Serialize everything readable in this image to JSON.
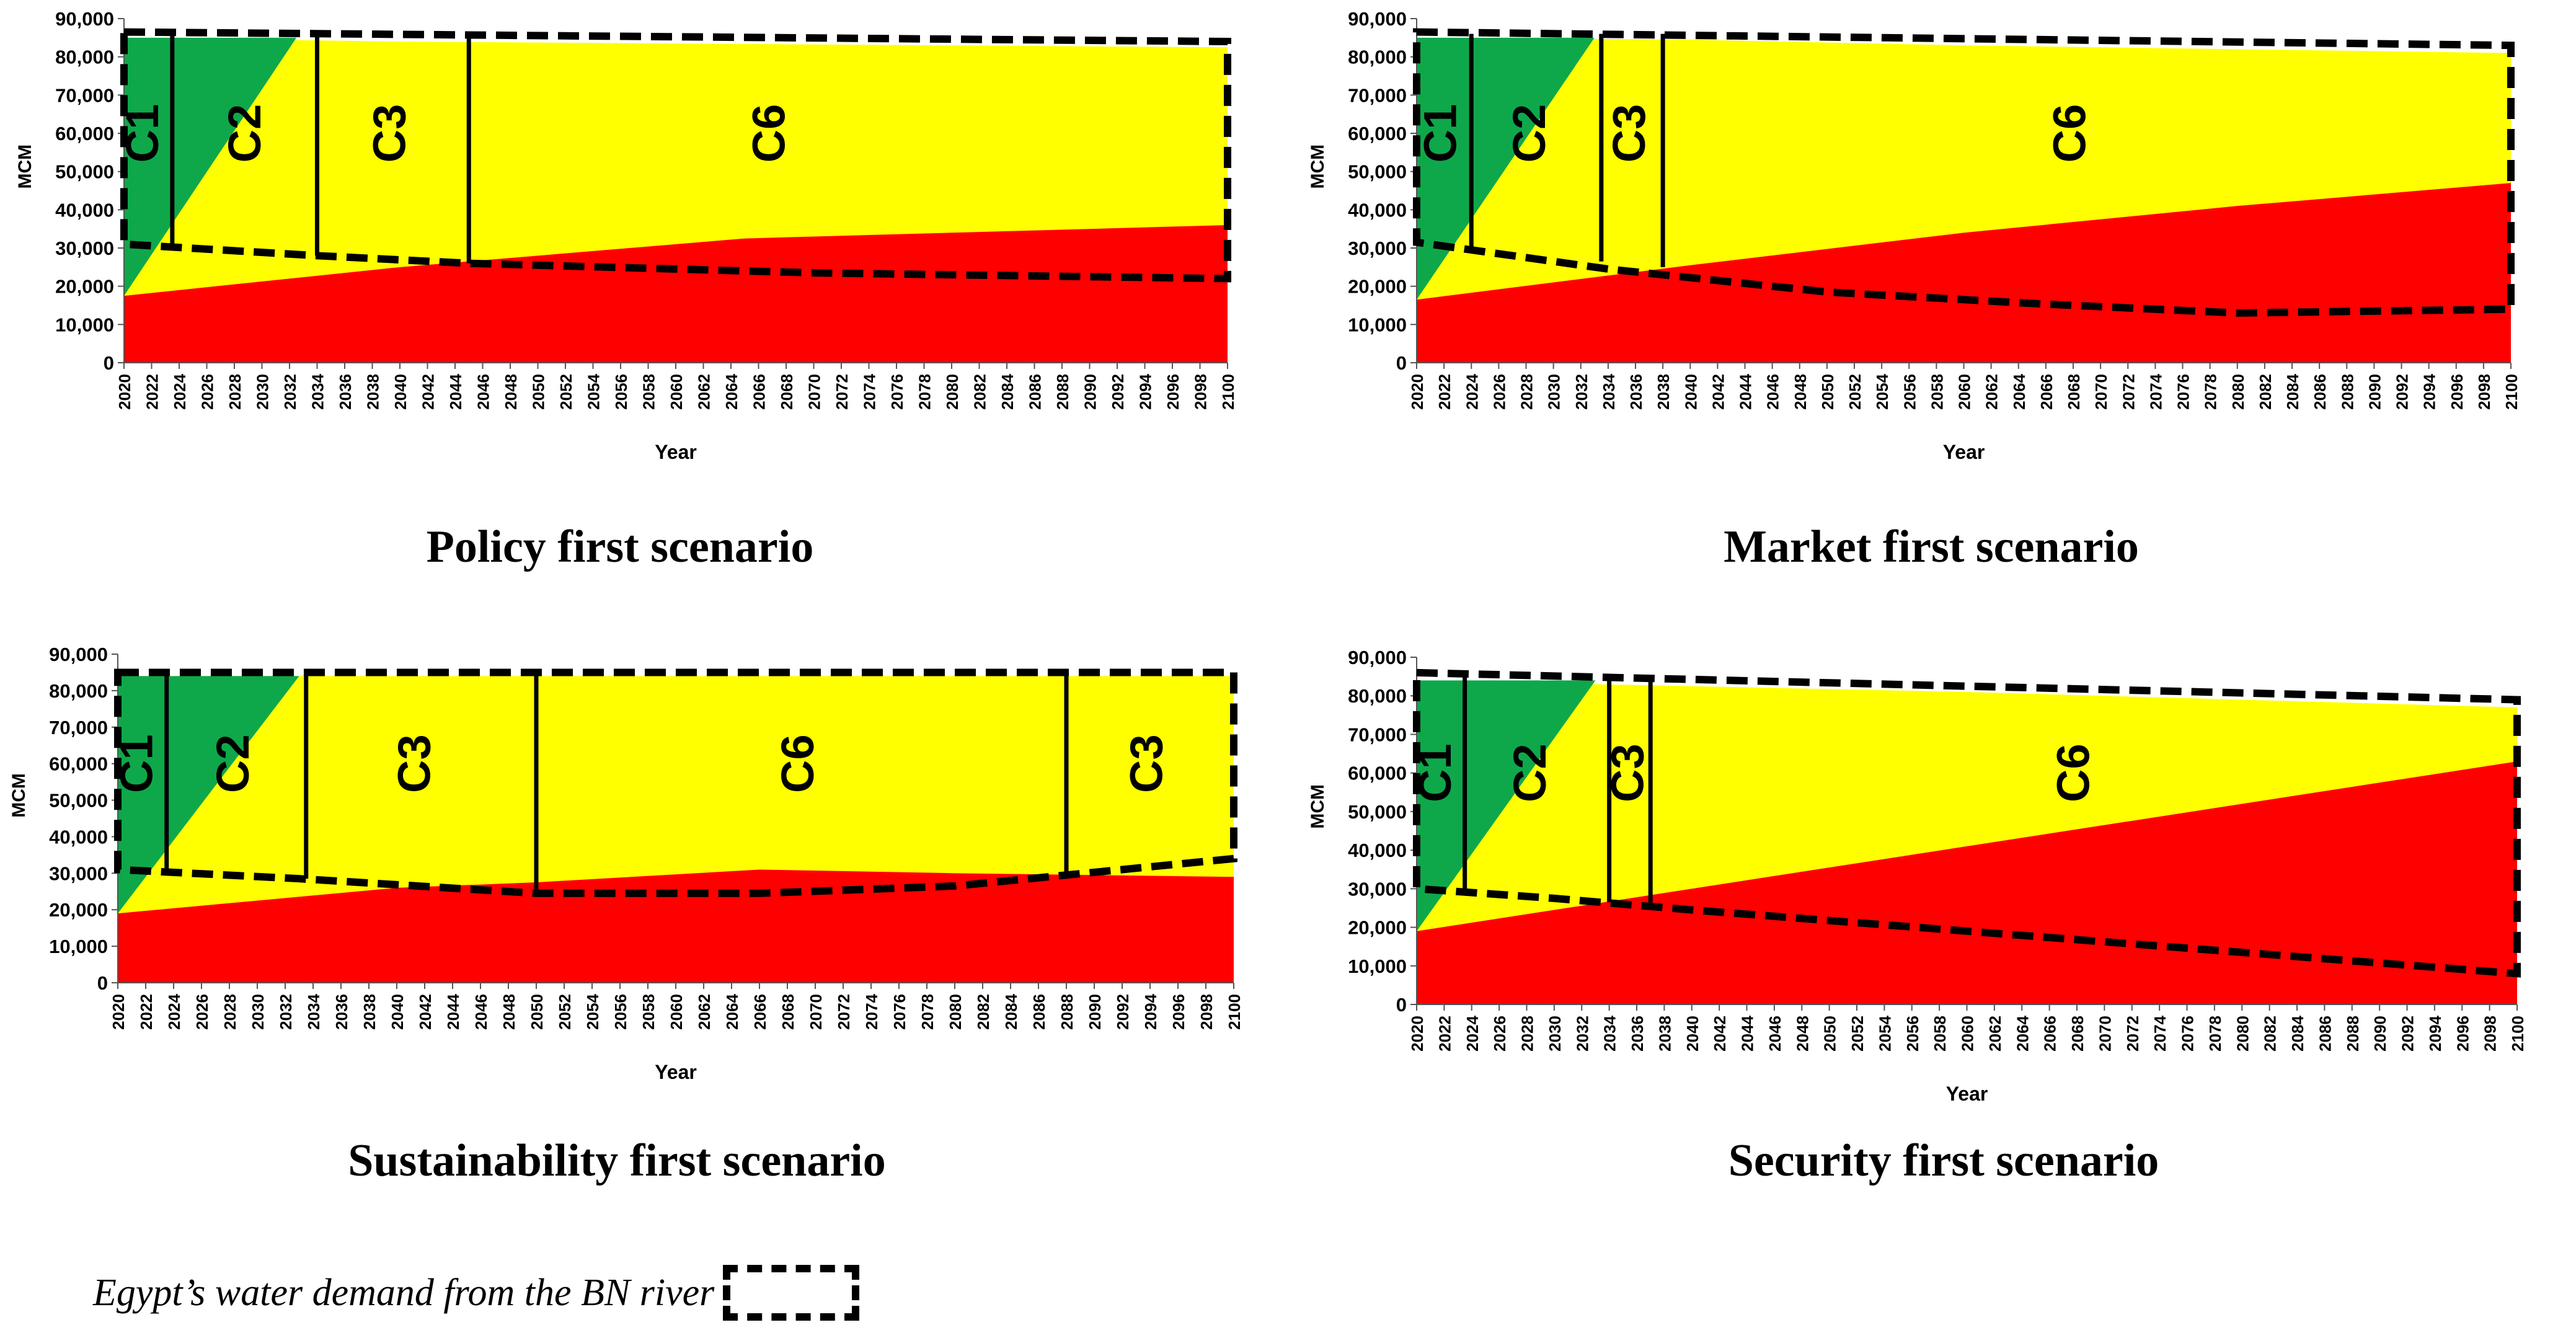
{
  "figure": {
    "legend_text": "Egypt’s water demand from the BN river",
    "panels": [
      {
        "title": "Policy first scenario",
        "chart_data": {
          "type": "area",
          "xlabel": "Year",
          "ylabel": "MCM",
          "x_range": [
            2020,
            2100
          ],
          "ylim": [
            0,
            90000
          ],
          "y_ticks": [
            0,
            10000,
            20000,
            30000,
            40000,
            50000,
            60000,
            70000,
            80000,
            90000
          ],
          "x_ticks": [
            2020,
            2022,
            2024,
            2026,
            2028,
            2030,
            2032,
            2034,
            2036,
            2038,
            2040,
            2042,
            2044,
            2046,
            2048,
            2050,
            2052,
            2054,
            2056,
            2058,
            2060,
            2062,
            2064,
            2066,
            2068,
            2070,
            2072,
            2074,
            2076,
            2078,
            2080,
            2082,
            2084,
            2086,
            2088,
            2090,
            2092,
            2094,
            2096,
            2098,
            2100
          ],
          "colors": {
            "red": "#ff0000",
            "yellow": "#ffff00",
            "green": "#0ea84a"
          },
          "series": [
            {
              "name": "",
              "color": "#ff0000",
              "points": [
                [
                  2020,
                  17500
                ],
                [
                  2040,
                  25000
                ],
                [
                  2065,
                  32500
                ],
                [
                  2100,
                  36000
                ]
              ]
            },
            {
              "name": "",
              "color": "#ffff00",
              "points": [
                [
                  2020,
                  85000
                ],
                [
                  2040,
                  84000
                ],
                [
                  2060,
                  83500
                ],
                [
                  2080,
                  83000
                ],
                [
                  2100,
                  82500
                ]
              ]
            }
          ],
          "green_region": [
            [
              2020,
              17500
            ],
            [
              2020,
              85000
            ],
            [
              2032.5,
              85000
            ]
          ],
          "regions": [
            {
              "label": "C1",
              "x_start": 2020,
              "x_end": 2023.5,
              "label_x": 2021.6
            },
            {
              "label": "C2",
              "x_start": 2023.5,
              "x_end": 2034,
              "label_x": 2029
            },
            {
              "label": "C3",
              "x_start": 2034,
              "x_end": 2045,
              "label_x": 2039.5
            },
            {
              "label": "C6",
              "x_start": 2045,
              "x_end": 2100,
              "label_x": 2067
            }
          ],
          "boundaries": [
            {
              "x": 2023.5,
              "y_bottom": 31000,
              "y_top": 86000
            },
            {
              "x": 2034,
              "y_bottom": 28000,
              "y_top": 86000
            },
            {
              "x": 2045,
              "y_bottom": 26000,
              "y_top": 85000
            }
          ],
          "demand": {
            "top": [
              [
                2020,
                86500
              ],
              [
                2100,
                84000
              ]
            ],
            "bottom": [
              [
                2020,
                31000
              ],
              [
                2034,
                28000
              ],
              [
                2045,
                26000
              ],
              [
                2070,
                23500
              ],
              [
                2100,
                22000
              ]
            ]
          }
        }
      },
      {
        "title": "Market first scenario",
        "chart_data": {
          "type": "area",
          "xlabel": "Year",
          "ylabel": "MCM",
          "x_range": [
            2020,
            2100
          ],
          "ylim": [
            0,
            90000
          ],
          "y_ticks": [
            0,
            10000,
            20000,
            30000,
            40000,
            50000,
            60000,
            70000,
            80000,
            90000
          ],
          "x_ticks": [
            2020,
            2022,
            2024,
            2026,
            2028,
            2030,
            2032,
            2034,
            2036,
            2038,
            2040,
            2042,
            2044,
            2046,
            2048,
            2050,
            2052,
            2054,
            2056,
            2058,
            2060,
            2062,
            2064,
            2066,
            2068,
            2070,
            2072,
            2074,
            2076,
            2078,
            2080,
            2082,
            2084,
            2086,
            2088,
            2090,
            2092,
            2094,
            2096,
            2098,
            2100
          ],
          "colors": {
            "red": "#ff0000",
            "yellow": "#ffff00",
            "green": "#0ea84a"
          },
          "series": [
            {
              "name": "",
              "color": "#ff0000",
              "points": [
                [
                  2020,
                  16500
                ],
                [
                  2040,
                  25500
                ],
                [
                  2060,
                  34000
                ],
                [
                  2080,
                  41000
                ],
                [
                  2100,
                  47000
                ]
              ]
            },
            {
              "name": "",
              "color": "#ffff00",
              "points": [
                [
                  2020,
                  85000
                ],
                [
                  2040,
                  84500
                ],
                [
                  2060,
                  83000
                ],
                [
                  2080,
                  82000
                ],
                [
                  2100,
                  81000
                ]
              ]
            }
          ],
          "green_region": [
            [
              2020,
              16500
            ],
            [
              2020,
              85000
            ],
            [
              2033,
              85000
            ]
          ],
          "regions": [
            {
              "label": "C1",
              "x_start": 2020,
              "x_end": 2024,
              "label_x": 2022
            },
            {
              "label": "C2",
              "x_start": 2024,
              "x_end": 2033.5,
              "label_x": 2028.5
            },
            {
              "label": "C3",
              "x_start": 2033.5,
              "x_end": 2038,
              "label_x": 2035.8
            },
            {
              "label": "C6",
              "x_start": 2038,
              "x_end": 2100,
              "label_x": 2068
            }
          ],
          "boundaries": [
            {
              "x": 2024,
              "y_bottom": 29000,
              "y_top": 86000
            },
            {
              "x": 2033.5,
              "y_bottom": 26500,
              "y_top": 86000
            },
            {
              "x": 2038,
              "y_bottom": 25000,
              "y_top": 86000
            }
          ],
          "demand": {
            "top": [
              [
                2020,
                86500
              ],
              [
                2100,
                83000
              ]
            ],
            "bottom": [
              [
                2020,
                31500
              ],
              [
                2024,
                29500
              ],
              [
                2034,
                24500
              ],
              [
                2050,
                18500
              ],
              [
                2065,
                15500
              ],
              [
                2080,
                13000
              ],
              [
                2100,
                14000
              ]
            ]
          }
        }
      },
      {
        "title": "Sustainability first scenario",
        "chart_data": {
          "type": "area",
          "xlabel": "Year",
          "ylabel": "MCM",
          "x_range": [
            2020,
            2100
          ],
          "ylim": [
            0,
            90000
          ],
          "y_ticks": [
            0,
            10000,
            20000,
            30000,
            40000,
            50000,
            60000,
            70000,
            80000,
            90000
          ],
          "x_ticks": [
            2020,
            2022,
            2024,
            2026,
            2028,
            2030,
            2032,
            2034,
            2036,
            2038,
            2040,
            2042,
            2044,
            2046,
            2048,
            2050,
            2052,
            2054,
            2056,
            2058,
            2060,
            2062,
            2064,
            2066,
            2068,
            2070,
            2072,
            2074,
            2076,
            2078,
            2080,
            2082,
            2084,
            2086,
            2088,
            2090,
            2092,
            2094,
            2096,
            2098,
            2100
          ],
          "colors": {
            "red": "#ff0000",
            "yellow": "#ffff00",
            "green": "#0ea84a"
          },
          "series": [
            {
              "name": "",
              "color": "#ff0000",
              "points": [
                [
                  2020,
                  19000
                ],
                [
                  2040,
                  26000
                ],
                [
                  2050,
                  27500
                ],
                [
                  2066,
                  31000
                ],
                [
                  2080,
                  30000
                ],
                [
                  2090,
                  29500
                ],
                [
                  2100,
                  29000
                ]
              ]
            },
            {
              "name": "",
              "color": "#ffff00",
              "points": [
                [
                  2020,
                  84000
                ],
                [
                  2100,
                  84000
                ]
              ]
            }
          ],
          "green_region": [
            [
              2020,
              19000
            ],
            [
              2020,
              84000
            ],
            [
              2033,
              84000
            ]
          ],
          "regions": [
            {
              "label": "C1",
              "x_start": 2020,
              "x_end": 2023.5,
              "label_x": 2021.6
            },
            {
              "label": "C2",
              "x_start": 2023.5,
              "x_end": 2033.5,
              "label_x": 2028.5
            },
            {
              "label": "C3",
              "x_start": 2033.5,
              "x_end": 2050,
              "label_x": 2041.5
            },
            {
              "label": "C6",
              "x_start": 2050,
              "x_end": 2088,
              "label_x": 2069
            },
            {
              "label": "C3",
              "x_start": 2088,
              "x_end": 2100,
              "label_x": 2094
            }
          ],
          "boundaries": [
            {
              "x": 2023.5,
              "y_bottom": 30000,
              "y_top": 85000
            },
            {
              "x": 2033.5,
              "y_bottom": 28500,
              "y_top": 85000
            },
            {
              "x": 2050,
              "y_bottom": 25500,
              "y_top": 85000
            },
            {
              "x": 2088,
              "y_bottom": 29000,
              "y_top": 85000
            }
          ],
          "demand": {
            "top": [
              [
                2020,
                85000
              ],
              [
                2100,
                85000
              ]
            ],
            "bottom": [
              [
                2020,
                31000
              ],
              [
                2033,
                28500
              ],
              [
                2050,
                24500
              ],
              [
                2066,
                24500
              ],
              [
                2080,
                26500
              ],
              [
                2088,
                29500
              ],
              [
                2100,
                34000
              ]
            ]
          }
        }
      },
      {
        "title": "Security first scenario",
        "chart_data": {
          "type": "area",
          "xlabel": "Year",
          "ylabel": "MCM",
          "x_range": [
            2020,
            2100
          ],
          "ylim": [
            0,
            90000
          ],
          "y_ticks": [
            0,
            10000,
            20000,
            30000,
            40000,
            50000,
            60000,
            70000,
            80000,
            90000
          ],
          "x_ticks": [
            2020,
            2022,
            2024,
            2026,
            2028,
            2030,
            2032,
            2034,
            2036,
            2038,
            2040,
            2042,
            2044,
            2046,
            2048,
            2050,
            2052,
            2054,
            2056,
            2058,
            2060,
            2062,
            2064,
            2066,
            2068,
            2070,
            2072,
            2074,
            2076,
            2078,
            2080,
            2082,
            2084,
            2086,
            2088,
            2090,
            2092,
            2094,
            2096,
            2098,
            2100
          ],
          "colors": {
            "red": "#ff0000",
            "yellow": "#ffff00",
            "green": "#0ea84a"
          },
          "series": [
            {
              "name": "",
              "color": "#ff0000",
              "points": [
                [
                  2020,
                  19000
                ],
                [
                  2060,
                  41000
                ],
                [
                  2100,
                  63000
                ]
              ]
            },
            {
              "name": "",
              "color": "#ffff00",
              "points": [
                [
                  2020,
                  84000
                ],
                [
                  2060,
                  81000
                ],
                [
                  2100,
                  77000
                ]
              ]
            }
          ],
          "green_region": [
            [
              2020,
              19000
            ],
            [
              2020,
              84000
            ],
            [
              2033,
              84000
            ]
          ],
          "regions": [
            {
              "label": "C1",
              "x_start": 2020,
              "x_end": 2023.5,
              "label_x": 2021.6
            },
            {
              "label": "C2",
              "x_start": 2023.5,
              "x_end": 2034,
              "label_x": 2028.5
            },
            {
              "label": "C3",
              "x_start": 2034,
              "x_end": 2037,
              "label_x": 2035.6
            },
            {
              "label": "C6",
              "x_start": 2037,
              "x_end": 2100,
              "label_x": 2068
            }
          ],
          "boundaries": [
            {
              "x": 2023.5,
              "y_bottom": 29000,
              "y_top": 85500
            },
            {
              "x": 2034,
              "y_bottom": 26500,
              "y_top": 85000
            },
            {
              "x": 2037,
              "y_bottom": 25500,
              "y_top": 85000
            }
          ],
          "demand": {
            "top": [
              [
                2020,
                86000
              ],
              [
                2100,
                79000
              ]
            ],
            "bottom": [
              [
                2020,
                30000
              ],
              [
                2030,
                27500
              ],
              [
                2040,
                24500
              ],
              [
                2060,
                19000
              ],
              [
                2080,
                13500
              ],
              [
                2100,
                8000
              ]
            ]
          }
        }
      }
    ]
  }
}
